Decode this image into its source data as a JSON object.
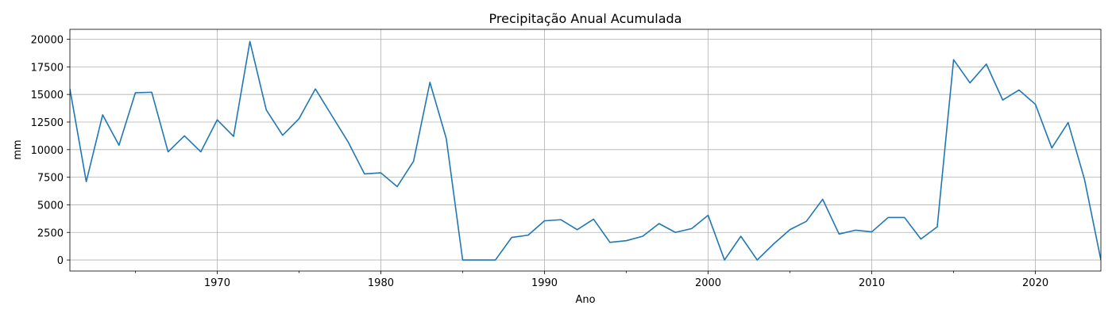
{
  "chart_data": {
    "type": "line",
    "title": "Precipitação Anual Acumulada",
    "xlabel": "Ano",
    "ylabel": "mm",
    "xlim": [
      1961,
      2024
    ],
    "ylim": [
      -1000,
      20900
    ],
    "grid": true,
    "x_ticks": [
      1970,
      1980,
      1990,
      2000,
      2010,
      2020
    ],
    "x_minor_ticks": [
      1965,
      1975,
      1985,
      1995,
      2005,
      2015
    ],
    "y_ticks": [
      0,
      2500,
      5000,
      7500,
      10000,
      12500,
      15000,
      17500,
      20000
    ],
    "line_color": "#1f77b4",
    "series": [
      {
        "x": [
          1961,
          1962,
          1963,
          1964,
          1965,
          1966,
          1967,
          1968,
          1969,
          1970,
          1971,
          1972,
          1973,
          1974,
          1975,
          1976,
          1977,
          1978,
          1979,
          1980,
          1981,
          1982,
          1983,
          1984,
          1985,
          1986,
          1987,
          1988,
          1989,
          1990,
          1991,
          1992,
          1993,
          1994,
          1995,
          1996,
          1997,
          1998,
          1999,
          2000,
          2001,
          2002,
          2003,
          2004,
          2005,
          2006,
          2007,
          2008,
          2009,
          2010,
          2011,
          2012,
          2013,
          2014,
          2015,
          2016,
          2017,
          2018,
          2019,
          2020,
          2021,
          2022,
          2023,
          2024
        ],
        "values": [
          15500,
          7100,
          13150,
          10400,
          15150,
          15200,
          9800,
          11250,
          9800,
          12700,
          11200,
          19800,
          13600,
          11300,
          12800,
          15500,
          13100,
          10700,
          7800,
          7900,
          6650,
          8950,
          16100,
          11000,
          0,
          0,
          0,
          2050,
          2250,
          3550,
          3650,
          2750,
          3700,
          1600,
          1750,
          2150,
          3300,
          2500,
          2850,
          4050,
          0,
          2150,
          0,
          1450,
          2750,
          3500,
          5500,
          2350,
          2700,
          2550,
          3850,
          3850,
          1900,
          3000,
          18150,
          16050,
          17750,
          14500,
          15400,
          14100,
          10150,
          12450,
          7300,
          0
        ]
      }
    ]
  }
}
